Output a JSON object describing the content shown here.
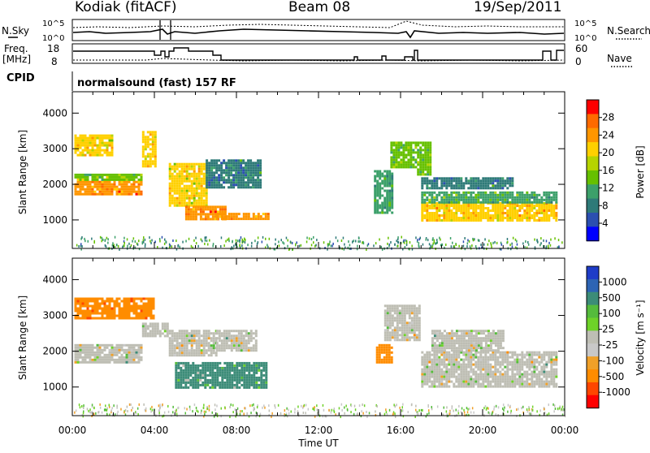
{
  "header": {
    "radar": "Kodiak (fitACF)",
    "beam": "Beam 08",
    "date": "19/Sep/2011",
    "cpid_label": "CPID",
    "cpid_value": "normalsound (fast) 157 RF"
  },
  "strip": {
    "nsky_label": "N.Sky",
    "nsearch_label": "N.Search",
    "noise_ticks": [
      "10^5",
      "10^0"
    ],
    "freq_label_line1": "Freq.",
    "freq_label_line2": "[MHz]",
    "freq_ticks": [
      "18",
      "8"
    ],
    "nave_label": "Nave",
    "nave_ticks": [
      "60",
      "0"
    ]
  },
  "x_axis": {
    "label": "Time UT",
    "ticks": [
      "00:00",
      "04:00",
      "08:00",
      "12:00",
      "16:00",
      "20:00",
      "00:00"
    ]
  },
  "chart_data": [
    {
      "type": "heatmap",
      "name": "power",
      "ylabel": "Slant Range [km]",
      "yticks": [
        1000,
        2000,
        3000,
        4000
      ],
      "ylim": [
        200,
        4600
      ],
      "xlim_hours": [
        0,
        24
      ],
      "colorbar_label": "Power [dB]",
      "colorbar_ticks": [
        "28",
        "24",
        "20",
        "16",
        "12",
        "8",
        "4"
      ],
      "colorbar_colors": [
        "#ff0000",
        "#ff6a00",
        "#ff9600",
        "#ffd000",
        "#b6d400",
        "#66c000",
        "#3ca06a",
        "#2e7a78",
        "#2b4fb0",
        "#0000ff"
      ],
      "regions": [
        {
          "t0": 0.1,
          "t1": 3.4,
          "r0": 1700,
          "r1": 2100,
          "value": 26
        },
        {
          "t0": 0.1,
          "t1": 3.4,
          "r0": 2100,
          "r1": 2300,
          "value": 16
        },
        {
          "t0": 0.1,
          "t1": 2.0,
          "r0": 2800,
          "r1": 3400,
          "value": 20
        },
        {
          "t0": 3.4,
          "t1": 4.0,
          "r0": 2500,
          "r1": 3500,
          "value": 22
        },
        {
          "t0": 4.7,
          "t1": 6.5,
          "r0": 1400,
          "r1": 2600,
          "value": 20
        },
        {
          "t0": 5.5,
          "t1": 7.5,
          "r0": 1000,
          "r1": 1400,
          "value": 26
        },
        {
          "t0": 6.5,
          "t1": 9.2,
          "r0": 1900,
          "r1": 2700,
          "value": 8
        },
        {
          "t0": 7.0,
          "t1": 9.5,
          "r0": 1000,
          "r1": 1200,
          "value": 24
        },
        {
          "t0": 14.7,
          "t1": 15.6,
          "r0": 1200,
          "r1": 2400,
          "value": 10
        },
        {
          "t0": 15.5,
          "t1": 16.8,
          "r0": 2500,
          "r1": 3200,
          "value": 14
        },
        {
          "t0": 17.0,
          "t1": 23.6,
          "r0": 1000,
          "r1": 1500,
          "value": 22
        },
        {
          "t0": 17.0,
          "t1": 23.6,
          "r0": 1500,
          "r1": 1800,
          "value": 12
        },
        {
          "t0": 17.0,
          "t1": 21.5,
          "r0": 1900,
          "r1": 2200,
          "value": 8
        },
        {
          "t0": 16.8,
          "t1": 17.5,
          "r0": 2300,
          "r1": 3200,
          "value": 14
        }
      ]
    },
    {
      "type": "heatmap",
      "name": "velocity",
      "ylabel": "Slant Range [km]",
      "yticks": [
        1000,
        2000,
        3000,
        4000
      ],
      "ylim": [
        200,
        4600
      ],
      "xlim_hours": [
        0,
        24
      ],
      "colorbar_label": "Velocity [m s⁻¹]",
      "colorbar_ticks": [
        "1000",
        "500",
        "100",
        "25",
        "-25",
        "-100",
        "-500",
        "-1000"
      ],
      "colorbar_colors": [
        "#1e3cc8",
        "#2d64b4",
        "#3c8c78",
        "#55bb3c",
        "#6ed228",
        "#bebeb4",
        "#c8c8c8",
        "#f0a028",
        "#ff8c00",
        "#ff4600",
        "#ff0000"
      ],
      "regions": [
        {
          "t0": 0.1,
          "t1": 3.4,
          "r0": 1700,
          "r1": 2200,
          "value": 0
        },
        {
          "t0": 0.1,
          "t1": 4.0,
          "r0": 2900,
          "r1": 3500,
          "value": -300
        },
        {
          "t0": 3.4,
          "t1": 4.7,
          "r0": 2400,
          "r1": 2800,
          "value": 0
        },
        {
          "t0": 4.7,
          "t1": 7.0,
          "r0": 1900,
          "r1": 2600,
          "value": 0
        },
        {
          "t0": 5.0,
          "t1": 9.5,
          "r0": 1000,
          "r1": 1700,
          "value": 90
        },
        {
          "t0": 7.0,
          "t1": 9.0,
          "r0": 2000,
          "r1": 2600,
          "value": 0
        },
        {
          "t0": 14.8,
          "t1": 15.6,
          "r0": 1700,
          "r1": 2200,
          "value": -250
        },
        {
          "t0": 15.2,
          "t1": 16.9,
          "r0": 2300,
          "r1": 3300,
          "value": 0
        },
        {
          "t0": 17.0,
          "t1": 23.6,
          "r0": 1000,
          "r1": 2000,
          "value": 0
        },
        {
          "t0": 17.5,
          "t1": 21.0,
          "r0": 2000,
          "r1": 2600,
          "value": 0
        }
      ]
    }
  ]
}
